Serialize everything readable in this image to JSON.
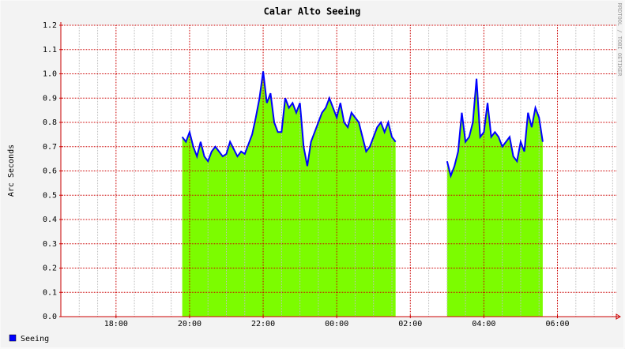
{
  "chart_data": {
    "type": "area",
    "title": "Calar Alto Seeing",
    "y_label": "Arc Seconds",
    "watermark": "RRDTOOL / TOBI OETIKER",
    "xlim": [
      16.5,
      31.6
    ],
    "xticks": [
      {
        "value": 18,
        "label": "18:00"
      },
      {
        "value": 20,
        "label": "20:00"
      },
      {
        "value": 22,
        "label": "22:00"
      },
      {
        "value": 24,
        "label": "00:00"
      },
      {
        "value": 26,
        "label": "02:00"
      },
      {
        "value": 28,
        "label": "04:00"
      },
      {
        "value": 30,
        "label": "06:00"
      }
    ],
    "minor_grid_step": 0.5,
    "ylim": [
      0,
      1.2
    ],
    "yticks": [
      {
        "value": 0,
        "label": "0.0"
      },
      0.1,
      0.2,
      0.3,
      0.4,
      0.5,
      0.6,
      0.7,
      0.8,
      0.9,
      {
        "value": 1,
        "label": "1.0"
      },
      1.1,
      1.2
    ],
    "grid": true,
    "legend": "bottom-left",
    "x": [
      19.8,
      19.9,
      20.0,
      20.1,
      20.2,
      20.3,
      20.4,
      20.5,
      20.6,
      20.7,
      20.8,
      20.9,
      21.0,
      21.1,
      21.2,
      21.3,
      21.4,
      21.5,
      21.6,
      21.7,
      21.8,
      21.9,
      22.0,
      22.1,
      22.2,
      22.3,
      22.4,
      22.5,
      22.6,
      22.7,
      22.8,
      22.9,
      23.0,
      23.1,
      23.2,
      23.3,
      23.4,
      23.5,
      23.6,
      23.7,
      23.8,
      23.9,
      24.0,
      24.1,
      24.2,
      24.3,
      24.4,
      24.5,
      24.6,
      24.7,
      24.8,
      24.9,
      25.0,
      25.1,
      25.2,
      25.3,
      25.4,
      25.5,
      25.6,
      26.3,
      27.0,
      27.1,
      27.2,
      27.3,
      27.4,
      27.5,
      27.6,
      27.7,
      27.8,
      27.9,
      28.0,
      28.1,
      28.2,
      28.3,
      28.4,
      28.5,
      28.6,
      28.7,
      28.8,
      28.9,
      29.0,
      29.1,
      29.2,
      29.3,
      29.4,
      29.5,
      29.6
    ],
    "series": [
      {
        "name": "Seeing",
        "color": "#0000ff",
        "fill": "#7cfc00",
        "values": [
          0.74,
          0.72,
          0.76,
          0.7,
          0.66,
          0.72,
          0.66,
          0.64,
          0.68,
          0.7,
          0.68,
          0.66,
          0.67,
          0.72,
          0.69,
          0.66,
          0.68,
          0.67,
          0.71,
          0.75,
          0.82,
          0.9,
          1.01,
          0.88,
          0.92,
          0.8,
          0.76,
          0.76,
          0.9,
          0.86,
          0.88,
          0.84,
          0.88,
          0.7,
          0.62,
          0.72,
          0.76,
          0.8,
          0.84,
          0.86,
          0.9,
          0.86,
          0.82,
          0.88,
          0.8,
          0.78,
          0.84,
          0.82,
          0.8,
          0.74,
          0.68,
          0.7,
          0.74,
          0.78,
          0.8,
          0.76,
          0.8,
          0.74,
          0.72,
          null,
          0.64,
          0.58,
          0.62,
          0.68,
          0.84,
          0.72,
          0.74,
          0.8,
          0.98,
          0.74,
          0.76,
          0.88,
          0.74,
          0.76,
          0.74,
          0.7,
          0.72,
          0.74,
          0.66,
          0.64,
          0.72,
          0.68,
          0.84,
          0.78,
          0.86,
          0.82,
          0.72
        ]
      }
    ]
  }
}
